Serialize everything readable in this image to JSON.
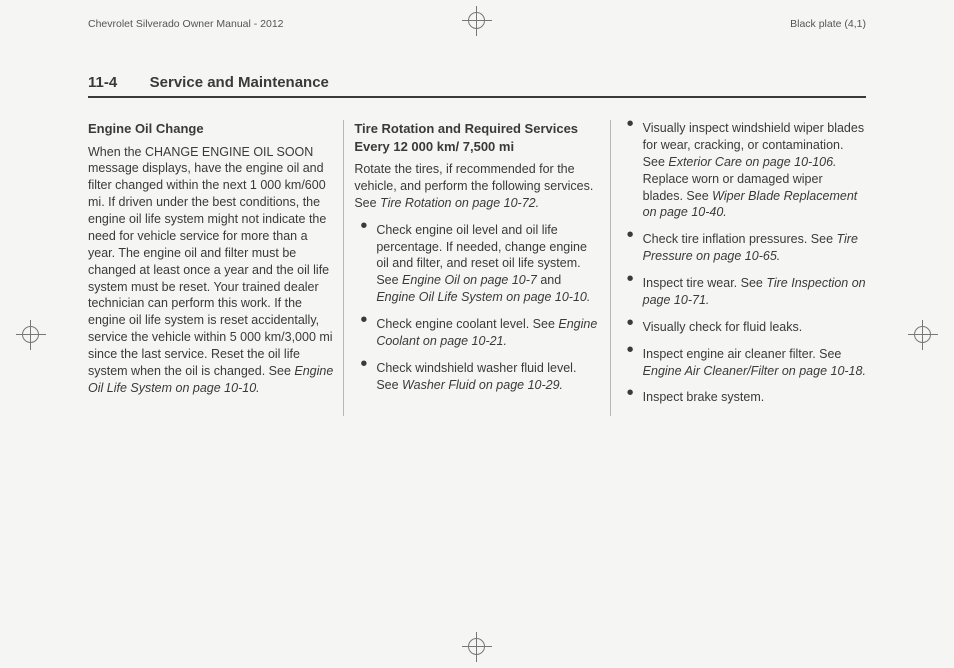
{
  "header": {
    "left": "Chevrolet Silverado Owner Manual - 2012",
    "right": "Black plate (4,1)"
  },
  "section": {
    "number": "11-4",
    "title": "Service and Maintenance"
  },
  "col1": {
    "heading": "Engine Oil Change",
    "p1a": "When the CHANGE ENGINE OIL SOON message displays, have the engine oil and filter changed within the next 1 000 km/600 mi. If driven under the best conditions, the engine oil life system might not indicate the need for vehicle service for more than a year. The engine oil and filter must be changed at least once a year and the oil life system must be reset. Your trained dealer technician can perform this work. If the engine oil life system is reset accidentally, service the vehicle within 5 000 km/3,000 mi since the last service. Reset the oil life system when the oil is changed. See ",
    "p1b": "Engine Oil Life System on page 10-10."
  },
  "col2": {
    "heading": "Tire Rotation and Required Services Every 12 000 km/ 7,500 mi",
    "introA": "Rotate the tires, if recommended for the vehicle, and perform the following services. See ",
    "introB": "Tire Rotation on page 10-72.",
    "b1a": "Check engine oil level and oil life percentage. If needed, change engine oil and filter, and reset oil life system. See ",
    "b1b": "Engine Oil on page 10-7",
    "b1c": " and ",
    "b1d": "Engine Oil Life System on page 10-10.",
    "b2a": "Check engine coolant level. See ",
    "b2b": "Engine Coolant on page 10-21.",
    "b3a": "Check windshield washer fluid level. See ",
    "b3b": "Washer Fluid on page 10-29."
  },
  "col3": {
    "b1a": "Visually inspect windshield wiper blades for wear, cracking, or contamination. See ",
    "b1b": "Exterior Care on page 10-106.",
    "b1c": " Replace worn or damaged wiper blades. See ",
    "b1d": "Wiper Blade Replacement on page 10-40.",
    "b2a": "Check tire inflation pressures. See ",
    "b2b": "Tire Pressure on page 10-65.",
    "b3a": "Inspect tire wear. See ",
    "b3b": "Tire Inspection on page 10-71.",
    "b4": "Visually check for fluid leaks.",
    "b5a": "Inspect engine air cleaner filter. See ",
    "b5b": "Engine Air Cleaner/Filter on page 10-18.",
    "b6": "Inspect brake system."
  }
}
